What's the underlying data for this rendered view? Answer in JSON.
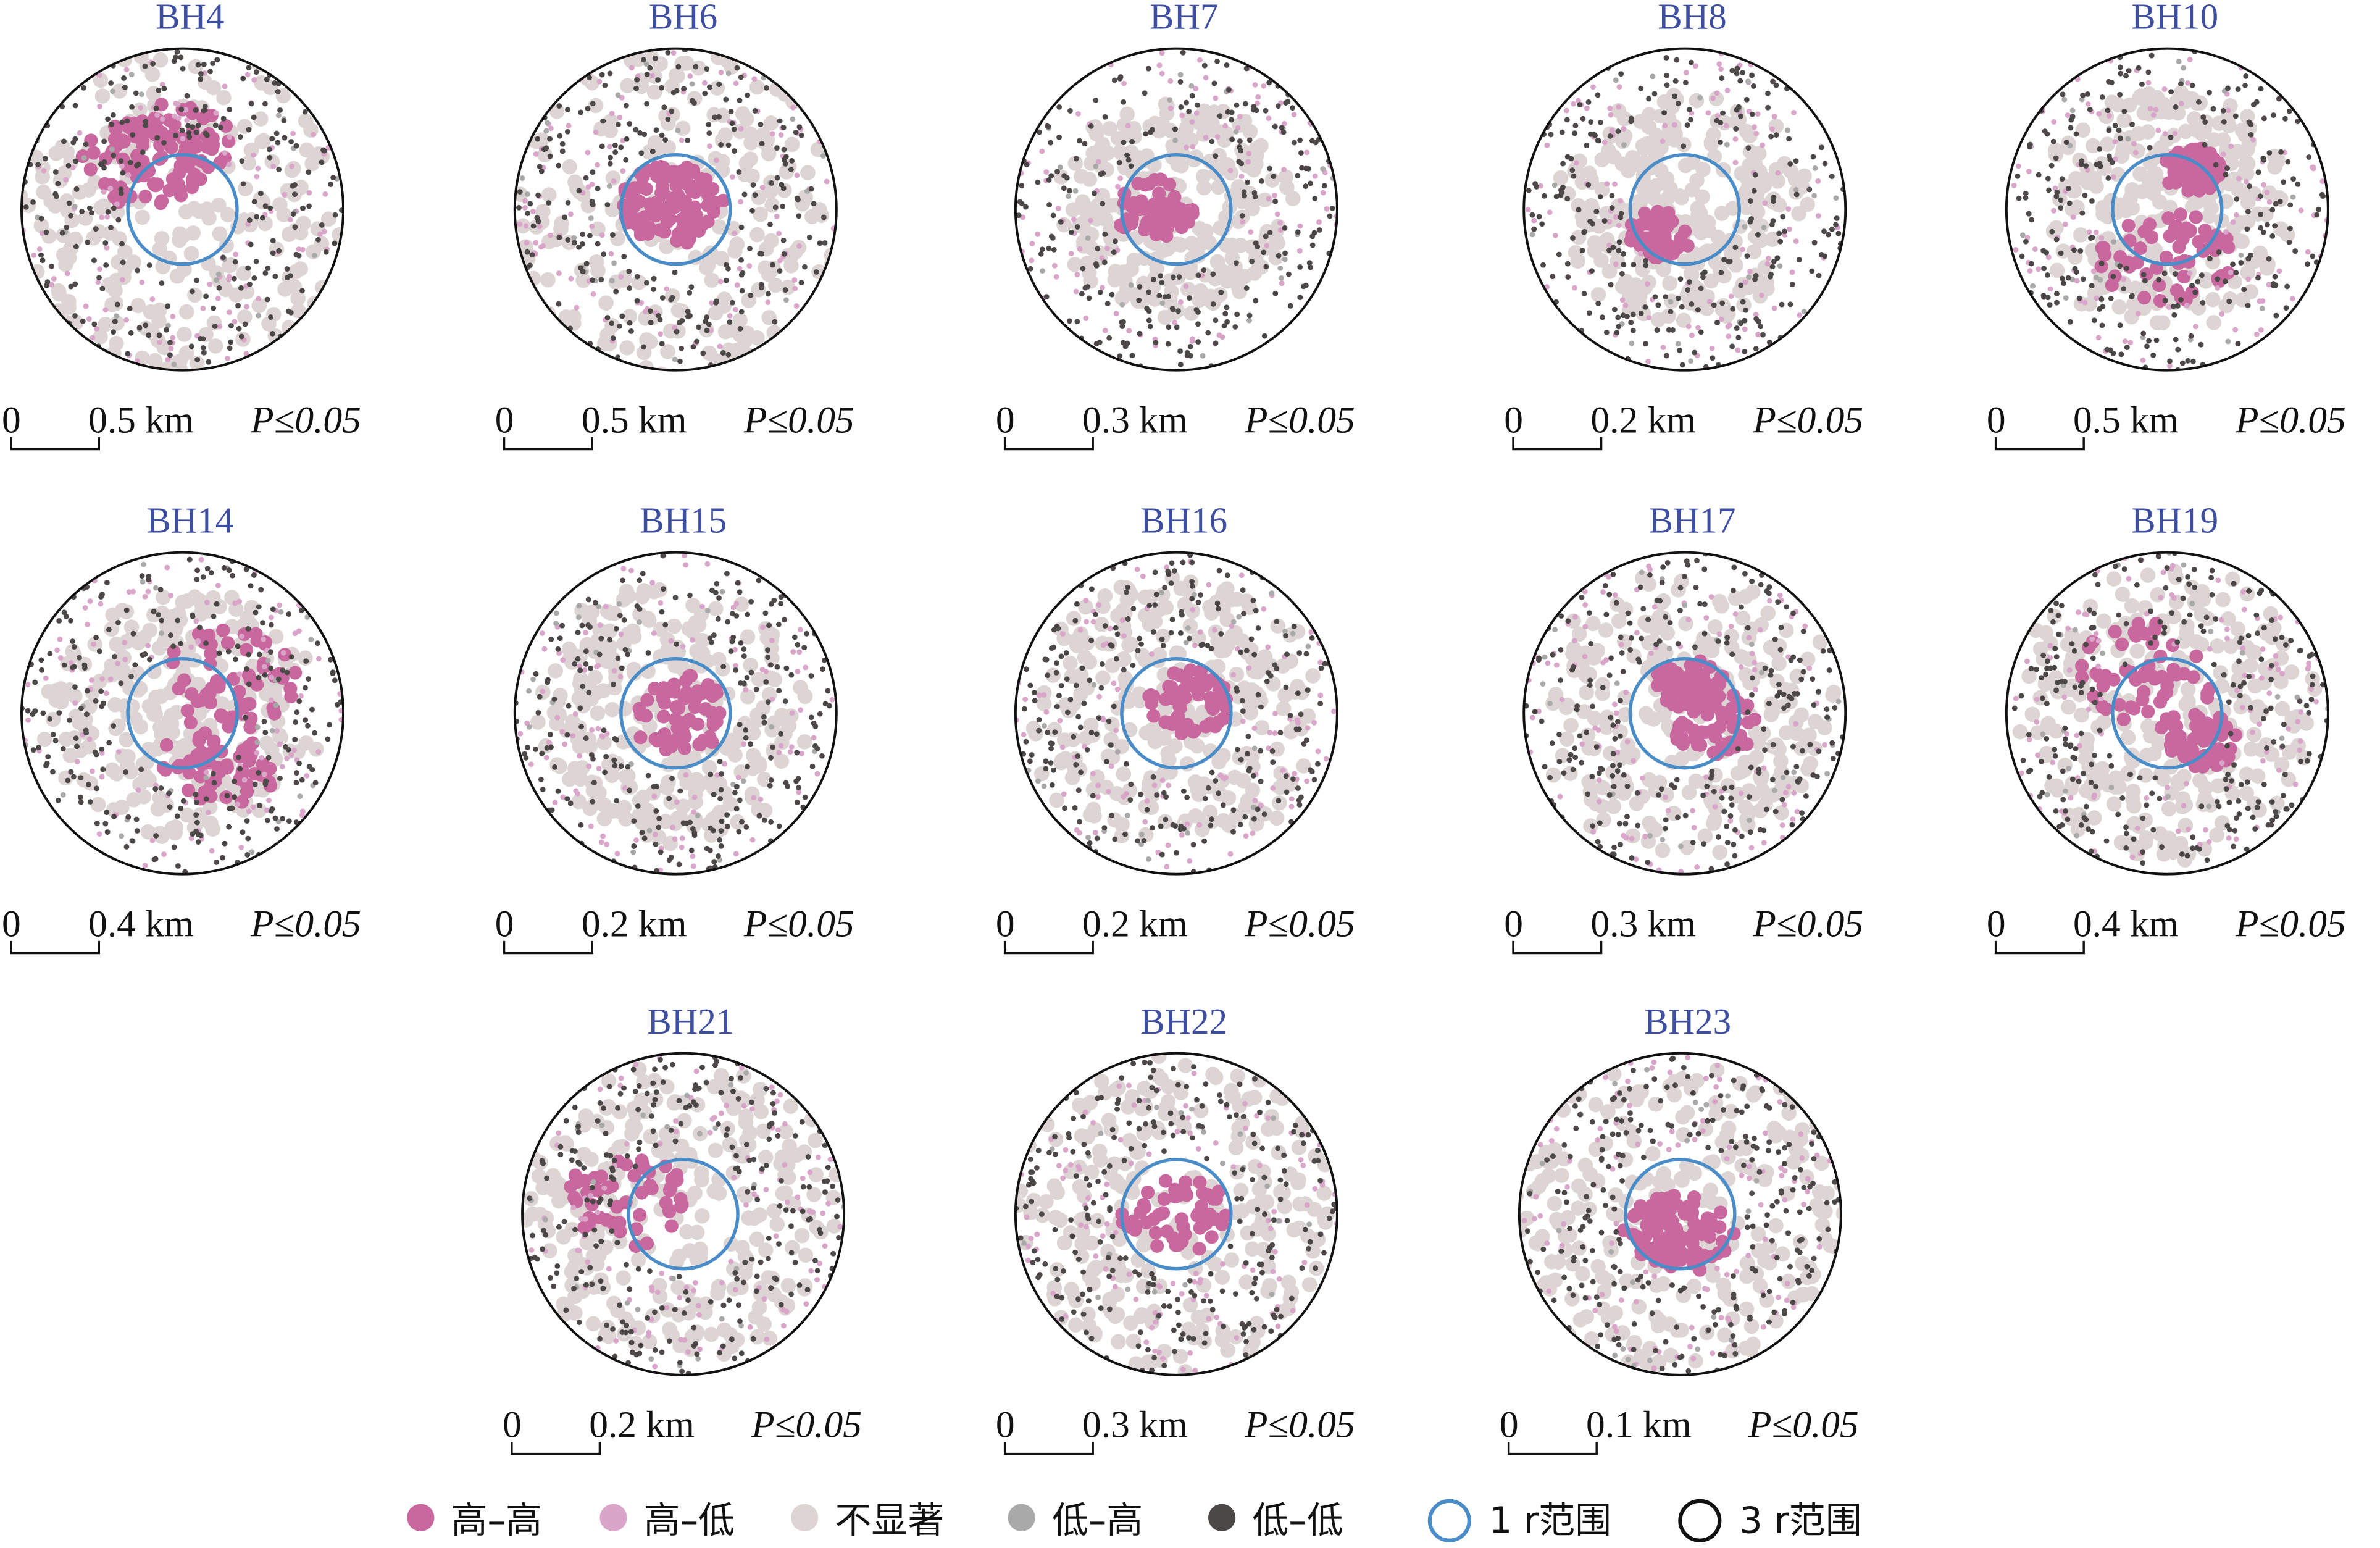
{
  "colors": {
    "hh": "#c9679f",
    "hl": "#d9a6c9",
    "ns": "#ddd5d3",
    "lh": "#a9a9a9",
    "ll": "#4d4848",
    "r1": "#4a8cc8",
    "r3": "#111111",
    "title": "#3f4fa0"
  },
  "maps": [
    {
      "name": "BH4",
      "scale_zero": "0",
      "scale_label": "0.5 km",
      "p_label": "P≤0.05"
    },
    {
      "name": "BH6",
      "scale_zero": "0",
      "scale_label": "0.5 km",
      "p_label": "P≤0.05"
    },
    {
      "name": "BH7",
      "scale_zero": "0",
      "scale_label": "0.3 km",
      "p_label": "P≤0.05"
    },
    {
      "name": "BH8",
      "scale_zero": "0",
      "scale_label": "0.2 km",
      "p_label": "P≤0.05"
    },
    {
      "name": "BH10",
      "scale_zero": "0",
      "scale_label": "0.5 km",
      "p_label": "P≤0.05"
    },
    {
      "name": "BH14",
      "scale_zero": "0",
      "scale_label": "0.4 km",
      "p_label": "P≤0.05"
    },
    {
      "name": "BH15",
      "scale_zero": "0",
      "scale_label": "0.2 km",
      "p_label": "P≤0.05"
    },
    {
      "name": "BH16",
      "scale_zero": "0",
      "scale_label": "0.2 km",
      "p_label": "P≤0.05"
    },
    {
      "name": "BH17",
      "scale_zero": "0",
      "scale_label": "0.3 km",
      "p_label": "P≤0.05"
    },
    {
      "name": "BH19",
      "scale_zero": "0",
      "scale_label": "0.4 km",
      "p_label": "P≤0.05"
    },
    {
      "name": "BH21",
      "scale_zero": "0",
      "scale_label": "0.2 km",
      "p_label": "P≤0.05"
    },
    {
      "name": "BH22",
      "scale_zero": "0",
      "scale_label": "0.3 km",
      "p_label": "P≤0.05"
    },
    {
      "name": "BH23",
      "scale_zero": "0",
      "scale_label": "0.1 km",
      "p_label": "P≤0.05"
    }
  ],
  "legend": [
    {
      "key": "hh",
      "label": "高–高"
    },
    {
      "key": "hl",
      "label": "高–低"
    },
    {
      "key": "ns",
      "label": "不显著"
    },
    {
      "key": "lh",
      "label": "低–高"
    },
    {
      "key": "ll",
      "label": "低–低"
    },
    {
      "key": "r1",
      "label": "1 r范围"
    },
    {
      "key": "r3",
      "label": "3 r范围"
    }
  ]
}
